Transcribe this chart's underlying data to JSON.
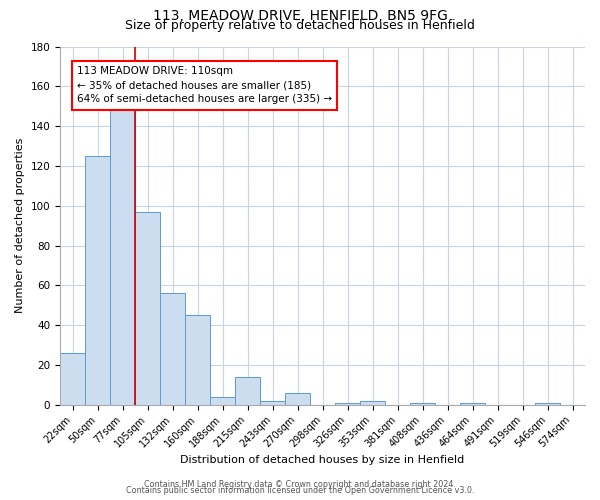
{
  "title": "113, MEADOW DRIVE, HENFIELD, BN5 9FG",
  "subtitle": "Size of property relative to detached houses in Henfield",
  "xlabel": "Distribution of detached houses by size in Henfield",
  "ylabel": "Number of detached properties",
  "bar_labels": [
    "22sqm",
    "50sqm",
    "77sqm",
    "105sqm",
    "132sqm",
    "160sqm",
    "188sqm",
    "215sqm",
    "243sqm",
    "270sqm",
    "298sqm",
    "326sqm",
    "353sqm",
    "381sqm",
    "408sqm",
    "436sqm",
    "464sqm",
    "491sqm",
    "519sqm",
    "546sqm",
    "574sqm"
  ],
  "bar_heights": [
    26,
    125,
    148,
    97,
    56,
    45,
    4,
    14,
    2,
    6,
    0,
    1,
    2,
    0,
    1,
    0,
    1,
    0,
    0,
    1,
    0
  ],
  "bar_color": "#ccddf0",
  "bar_edge_color": "#5b9bd5",
  "vline_color": "#cc0000",
  "annotation_text": "113 MEADOW DRIVE: 110sqm\n← 35% of detached houses are smaller (185)\n64% of semi-detached houses are larger (335) →",
  "ylim": [
    0,
    180
  ],
  "yticks": [
    0,
    20,
    40,
    60,
    80,
    100,
    120,
    140,
    160,
    180
  ],
  "footer1": "Contains HM Land Registry data © Crown copyright and database right 2024.",
  "footer2": "Contains public sector information licensed under the Open Government Licence v3.0.",
  "background_color": "#ffffff",
  "grid_color": "#c8d4e4",
  "title_fontsize": 10,
  "subtitle_fontsize": 9,
  "axis_label_fontsize": 8,
  "tick_fontsize": 7,
  "annot_fontsize": 7.5,
  "footer_fontsize": 5.8
}
